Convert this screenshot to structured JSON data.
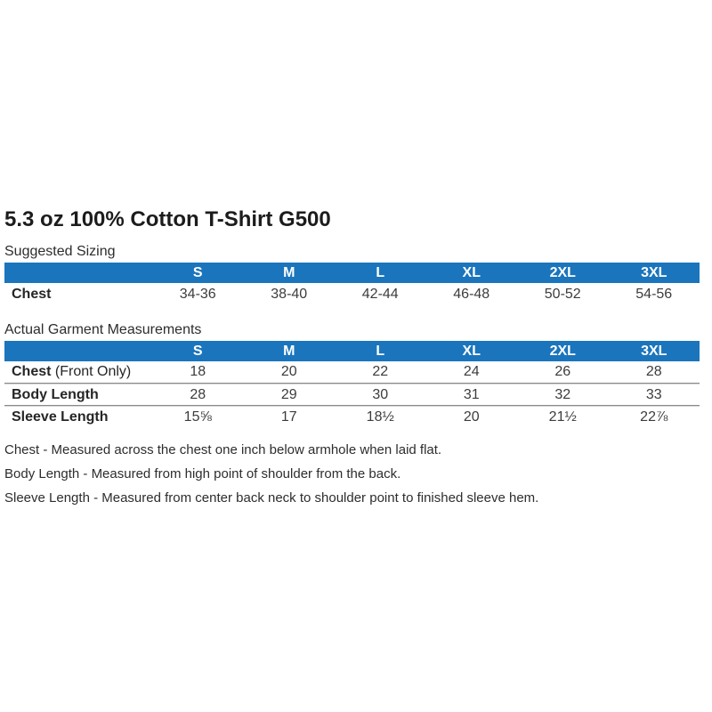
{
  "page": {
    "title": "5.3 oz 100% Cotton T-Shirt G500"
  },
  "suggested": {
    "heading": "Suggested Sizing",
    "columns": [
      "S",
      "M",
      "L",
      "XL",
      "2XL",
      "3XL"
    ],
    "rows": [
      {
        "label": "Chest",
        "label_suffix": "",
        "values": [
          "34-36",
          "38-40",
          "42-44",
          "46-48",
          "50-52",
          "54-56"
        ]
      }
    ]
  },
  "actual": {
    "heading": "Actual Garment Measurements",
    "columns": [
      "S",
      "M",
      "L",
      "XL",
      "2XL",
      "3XL"
    ],
    "rows": [
      {
        "label": "Chest",
        "label_suffix": " (Front Only)",
        "values": [
          "18",
          "20",
          "22",
          "24",
          "26",
          "28"
        ]
      },
      {
        "label": "Body Length",
        "label_suffix": "",
        "values": [
          "28",
          "29",
          "30",
          "31",
          "32",
          "33"
        ]
      },
      {
        "label": "Sleeve Length",
        "label_suffix": "",
        "values": [
          "15⅝",
          "17",
          "18½",
          "20",
          "21½",
          "22⅞"
        ]
      }
    ]
  },
  "notes": [
    "Chest - Measured across the chest one inch below armhole when laid flat.",
    "Body Length - Measured from high point of shoulder from the back.",
    "Sleeve Length - Measured from center back neck to shoulder point to finished sleeve hem."
  ],
  "colors": {
    "header_bg": "#1b75bc",
    "header_text": "#ffffff",
    "text": "#2d2d2d",
    "separator_dark": "#8a8a8a",
    "separator_light": "#d6d6d6"
  }
}
